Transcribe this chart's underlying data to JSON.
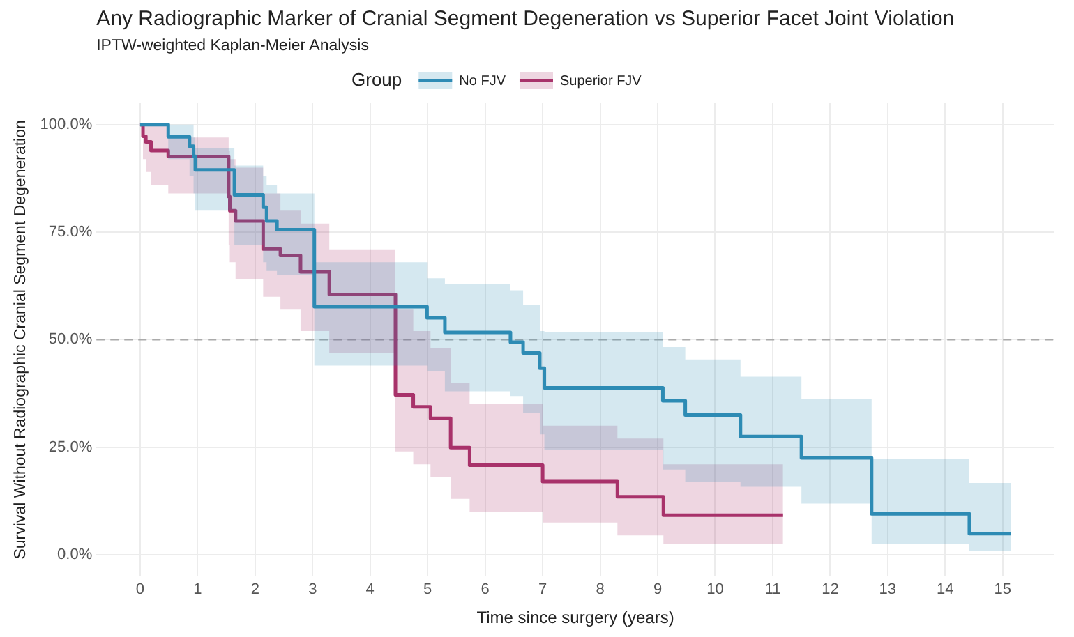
{
  "chart_data": {
    "type": "step",
    "title": "Any Radiographic Marker of Cranial Segment Degeneration vs Superior Facet Joint Violation",
    "subtitle": "IPTW-weighted Kaplan-Meier Analysis",
    "xlabel": "Time since surgery (years)",
    "ylabel": "Survival Without Radiographic Cranial Segment Degeneration",
    "legend_title": "Group",
    "legend": "top",
    "grid": true,
    "line_style": "solid",
    "marker": "none",
    "xlim": [
      -0.76,
      15.9
    ],
    "xticks": [
      0,
      1,
      2,
      3,
      4,
      5,
      6,
      7,
      8,
      9,
      10,
      11,
      12,
      13,
      14,
      15
    ],
    "ylim": [
      -5,
      105
    ],
    "yticks": [
      {
        "value": 0,
        "label": "0.0%"
      },
      {
        "value": 25,
        "label": "25.0%"
      },
      {
        "value": 50,
        "label": "50.0%"
      },
      {
        "value": 75,
        "label": "75.0%"
      },
      {
        "value": 100,
        "label": "100.0%"
      }
    ],
    "ref_lines": [
      {
        "axis": "y",
        "value": 50,
        "color": "#aaaaaa",
        "line_style": "dashed"
      }
    ],
    "series": [
      {
        "name": "No FJV",
        "color": "#2e8bb5",
        "x": [
          0,
          0.49,
          0.86,
          0.93,
          0.96,
          1.64,
          2.14,
          2.2,
          2.38,
          3.03,
          4.99,
          5.3,
          6.44,
          6.66,
          6.95,
          7.03,
          9.09,
          9.48,
          10.44,
          11.5,
          12.72,
          14.42,
          15.14
        ],
        "values": [
          100,
          97.2,
          95,
          92.7,
          89.5,
          83.7,
          80.8,
          77.6,
          75.6,
          57.7,
          55.1,
          51.7,
          49.4,
          46.9,
          43.4,
          38.8,
          35.8,
          32.5,
          27.5,
          22.5,
          9.5,
          4.9,
          4.9
        ],
        "upper": [
          100,
          100,
          100,
          97,
          94.5,
          90.5,
          88,
          86,
          84,
          68,
          64.3,
          63,
          61.5,
          58,
          52,
          51.7,
          48.3,
          45.4,
          41.4,
          36.3,
          22.2,
          16.7,
          16.7
        ],
        "lower": [
          100,
          92,
          88,
          84,
          80,
          72,
          68,
          66,
          65,
          44,
          42.7,
          38,
          36.9,
          33,
          28,
          24.3,
          19.8,
          17,
          15.8,
          11.9,
          2.6,
          0.9,
          0.9
        ]
      },
      {
        "name": "Superior FJV",
        "color": "#a8336b",
        "x": [
          0,
          0.05,
          0.1,
          0.19,
          0.49,
          1.54,
          1.56,
          1.66,
          2.14,
          2.44,
          2.79,
          3.29,
          4.44,
          4.75,
          5.05,
          5.4,
          5.73,
          7.0,
          8.3,
          9.1,
          11.18
        ],
        "values": [
          100,
          97.3,
          96,
          94,
          92.6,
          83.3,
          80,
          77.6,
          71.1,
          69.6,
          65.8,
          60.5,
          37.2,
          34.4,
          31.7,
          24.9,
          20.8,
          17,
          13.5,
          9.2,
          9.2
        ],
        "upper": [
          100,
          100,
          100,
          100,
          97,
          94,
          92,
          90,
          84,
          80,
          77,
          71,
          57,
          52,
          48,
          40,
          35,
          30,
          27,
          21,
          21
        ],
        "lower": [
          100,
          92,
          89,
          86,
          84,
          72,
          68,
          64,
          60,
          57,
          52,
          47,
          24,
          21,
          18,
          13,
          10,
          7.5,
          4.5,
          2.6,
          2.6
        ]
      }
    ]
  }
}
